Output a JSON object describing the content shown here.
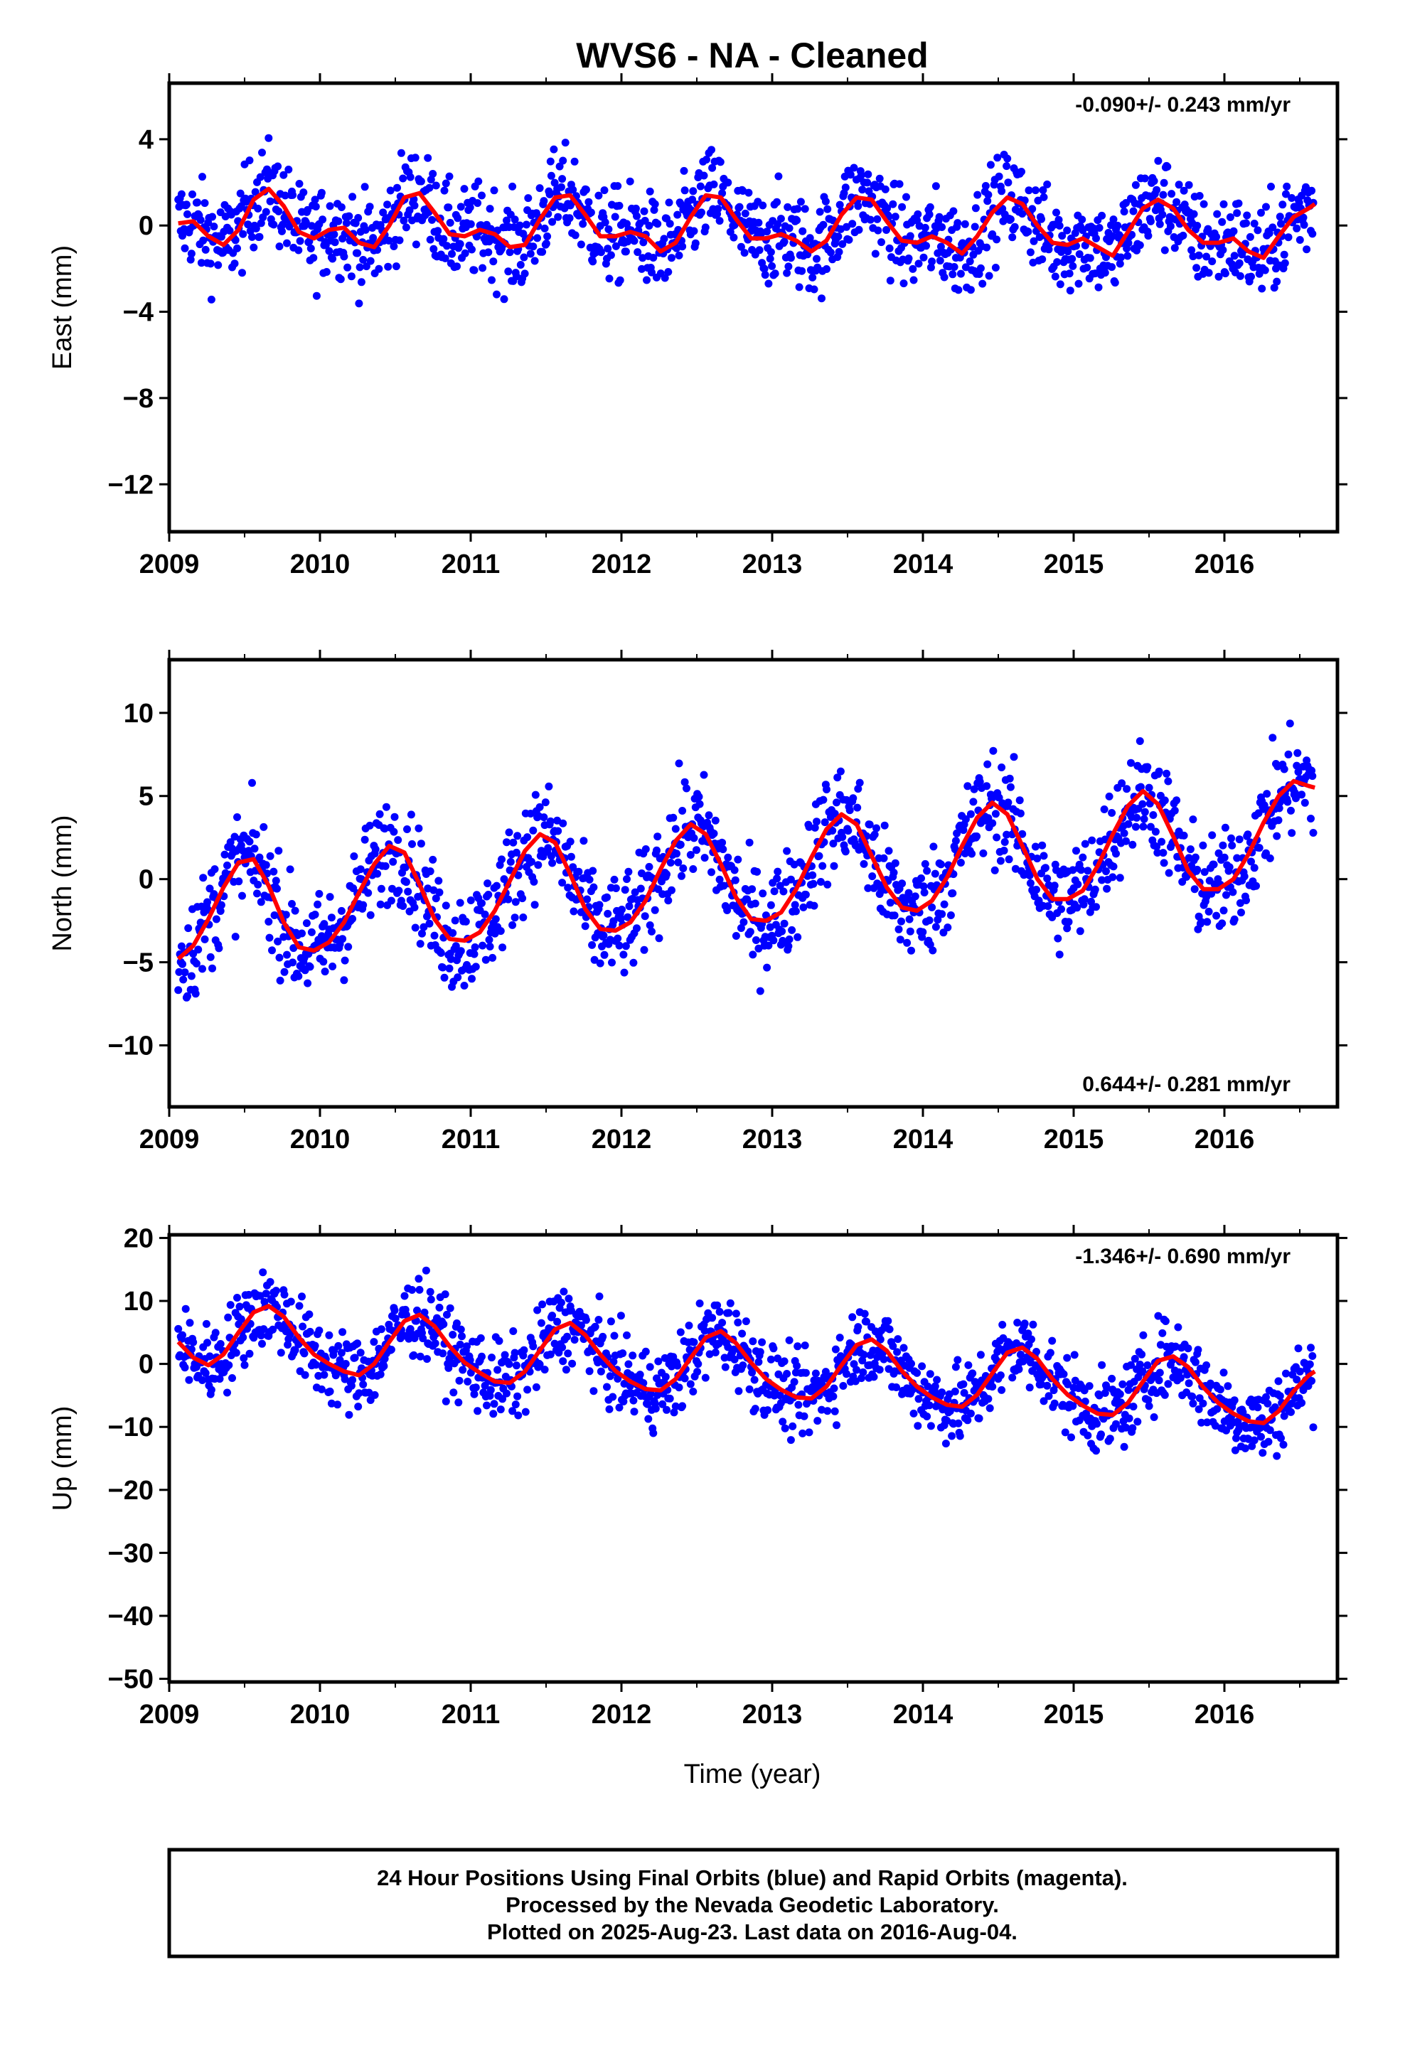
{
  "title": "WVS6  - NA - Cleaned",
  "xlabel": "Time (year)",
  "colors": {
    "final": "#0000ff",
    "rapid": "#ff00ff",
    "model": "#ff0000",
    "frame": "#000000"
  },
  "chart_data": [
    {
      "type": "scatter",
      "ylabel": "East (mm)",
      "rate_text": "-0.090+/- 0.243 mm/yr",
      "rate_position": "top-right",
      "xlim": [
        2009.0,
        2016.75
      ],
      "ylim": [
        -14.2,
        6.6
      ],
      "x_ticks": [
        "2009",
        "2010",
        "2011",
        "2012",
        "2013",
        "2014",
        "2015",
        "2016"
      ],
      "y_ticks": [
        "4",
        "0",
        "−4",
        "−8",
        "−12"
      ],
      "y_tick_values": [
        4,
        0,
        -4,
        -8,
        -12
      ],
      "series": [
        {
          "kind": "model",
          "x": [
            2009.06,
            2009.16,
            2009.26,
            2009.36,
            2009.46,
            2009.56,
            2009.66,
            2009.76,
            2009.86,
            2009.96,
            2010.06,
            2010.16,
            2010.26,
            2010.36,
            2010.46,
            2010.56,
            2010.66,
            2010.76,
            2010.86,
            2010.96,
            2011.06,
            2011.16,
            2011.26,
            2011.36,
            2011.46,
            2011.56,
            2011.66,
            2011.76,
            2011.86,
            2011.96,
            2012.06,
            2012.16,
            2012.26,
            2012.36,
            2012.46,
            2012.56,
            2012.66,
            2012.76,
            2012.86,
            2012.96,
            2013.06,
            2013.16,
            2013.26,
            2013.36,
            2013.46,
            2013.56,
            2013.66,
            2013.76,
            2013.86,
            2013.96,
            2014.06,
            2014.16,
            2014.26,
            2014.36,
            2014.46,
            2014.56,
            2014.66,
            2014.76,
            2014.86,
            2014.96,
            2015.06,
            2015.16,
            2015.26,
            2015.36,
            2015.46,
            2015.56,
            2015.66,
            2015.76,
            2015.86,
            2015.96,
            2016.06,
            2016.16,
            2016.26,
            2016.36,
            2016.46,
            2016.56,
            2016.6
          ],
          "y": [
            0.1,
            0.2,
            -0.5,
            -0.9,
            -0.2,
            1.2,
            1.7,
            0.9,
            -0.3,
            -0.6,
            -0.2,
            -0.1,
            -0.8,
            -1.0,
            0.0,
            1.3,
            1.5,
            0.6,
            -0.4,
            -0.5,
            -0.2,
            -0.4,
            -1.0,
            -0.9,
            0.3,
            1.3,
            1.4,
            0.5,
            -0.5,
            -0.5,
            -0.3,
            -0.5,
            -1.2,
            -0.8,
            0.4,
            1.4,
            1.3,
            0.3,
            -0.6,
            -0.6,
            -0.4,
            -0.7,
            -1.2,
            -0.7,
            0.5,
            1.3,
            1.2,
            0.2,
            -0.7,
            -0.8,
            -0.5,
            -0.8,
            -1.3,
            -0.5,
            0.6,
            1.3,
            1.0,
            0.0,
            -0.8,
            -0.9,
            -0.6,
            -1.0,
            -1.4,
            -0.3,
            0.8,
            1.2,
            0.8,
            -0.2,
            -0.8,
            -0.8,
            -0.6,
            -1.2,
            -1.5,
            -0.5,
            0.4,
            0.8,
            1.0
          ]
        }
      ]
    },
    {
      "type": "scatter",
      "ylabel": "North (mm)",
      "rate_text": "0.644+/- 0.281 mm/yr",
      "rate_position": "bottom-right",
      "xlim": [
        2009.0,
        2016.75
      ],
      "ylim": [
        -13.7,
        13.2
      ],
      "x_ticks": [
        "2009",
        "2010",
        "2011",
        "2012",
        "2013",
        "2014",
        "2015",
        "2016"
      ],
      "y_ticks": [
        "10",
        "5",
        "0",
        "−5",
        "−10"
      ],
      "y_tick_values": [
        10,
        5,
        0,
        -5,
        -10
      ],
      "series": [
        {
          "kind": "model",
          "x": [
            2009.06,
            2009.16,
            2009.26,
            2009.36,
            2009.46,
            2009.56,
            2009.66,
            2009.76,
            2009.86,
            2009.96,
            2010.06,
            2010.16,
            2010.26,
            2010.36,
            2010.46,
            2010.56,
            2010.66,
            2010.76,
            2010.86,
            2010.96,
            2011.06,
            2011.16,
            2011.26,
            2011.36,
            2011.46,
            2011.56,
            2011.66,
            2011.76,
            2011.86,
            2011.96,
            2012.06,
            2012.16,
            2012.26,
            2012.36,
            2012.46,
            2012.56,
            2012.66,
            2012.76,
            2012.86,
            2012.96,
            2013.06,
            2013.16,
            2013.26,
            2013.36,
            2013.46,
            2013.56,
            2013.66,
            2013.76,
            2013.86,
            2013.96,
            2014.06,
            2014.16,
            2014.26,
            2014.36,
            2014.46,
            2014.56,
            2014.66,
            2014.76,
            2014.86,
            2014.96,
            2015.06,
            2015.16,
            2015.26,
            2015.36,
            2015.46,
            2015.56,
            2015.66,
            2015.76,
            2015.86,
            2015.96,
            2016.06,
            2016.16,
            2016.26,
            2016.36,
            2016.46,
            2016.56,
            2016.6
          ],
          "y": [
            -4.8,
            -4.0,
            -2.4,
            -0.5,
            1.0,
            1.2,
            -0.4,
            -2.6,
            -4.1,
            -4.3,
            -3.8,
            -2.6,
            -0.8,
            0.9,
            2.0,
            1.6,
            -0.3,
            -2.4,
            -3.6,
            -3.7,
            -3.2,
            -1.9,
            -0.1,
            1.7,
            2.7,
            2.2,
            0.3,
            -1.8,
            -3.0,
            -3.1,
            -2.6,
            -1.3,
            0.6,
            2.3,
            3.3,
            2.7,
            0.9,
            -1.1,
            -2.4,
            -2.5,
            -2.0,
            -0.6,
            1.3,
            3.0,
            3.9,
            3.3,
            1.4,
            -0.5,
            -1.7,
            -1.9,
            -1.3,
            0.1,
            2.0,
            3.7,
            4.6,
            3.9,
            2.0,
            0.0,
            -1.2,
            -1.2,
            -0.7,
            0.8,
            2.7,
            4.4,
            5.3,
            4.5,
            2.6,
            0.5,
            -0.6,
            -0.6,
            0.0,
            1.5,
            3.4,
            5.0,
            5.9,
            5.6,
            5.5
          ]
        }
      ]
    },
    {
      "type": "scatter",
      "ylabel": "Up (mm)",
      "rate_text": "-1.346+/- 0.690 mm/yr",
      "rate_position": "top-right",
      "xlim": [
        2009.0,
        2016.75
      ],
      "ylim": [
        -50.5,
        20.5
      ],
      "x_ticks": [
        "2009",
        "2010",
        "2011",
        "2012",
        "2013",
        "2014",
        "2015",
        "2016"
      ],
      "y_ticks": [
        "20",
        "10",
        "0",
        "−10",
        "−20",
        "−30",
        "−40",
        "−50"
      ],
      "y_tick_values": [
        20,
        10,
        0,
        -10,
        -20,
        -30,
        -40,
        -50
      ],
      "series": [
        {
          "kind": "model",
          "x": [
            2009.06,
            2009.16,
            2009.26,
            2009.36,
            2009.46,
            2009.56,
            2009.66,
            2009.76,
            2009.86,
            2009.96,
            2010.06,
            2010.16,
            2010.26,
            2010.36,
            2010.46,
            2010.56,
            2010.66,
            2010.76,
            2010.86,
            2010.96,
            2011.06,
            2011.16,
            2011.26,
            2011.36,
            2011.46,
            2011.56,
            2011.66,
            2011.76,
            2011.86,
            2011.96,
            2012.06,
            2012.16,
            2012.26,
            2012.36,
            2012.46,
            2012.56,
            2012.66,
            2012.76,
            2012.86,
            2012.96,
            2013.06,
            2013.16,
            2013.26,
            2013.36,
            2013.46,
            2013.56,
            2013.66,
            2013.76,
            2013.86,
            2013.96,
            2014.06,
            2014.16,
            2014.26,
            2014.36,
            2014.46,
            2014.56,
            2014.66,
            2014.76,
            2014.86,
            2014.96,
            2015.06,
            2015.16,
            2015.26,
            2015.36,
            2015.46,
            2015.56,
            2015.66,
            2015.76,
            2015.86,
            2015.96,
            2016.06,
            2016.16,
            2016.26,
            2016.36,
            2016.46,
            2016.56,
            2016.6
          ],
          "y": [
            3.5,
            1.0,
            -0.2,
            1.5,
            5.0,
            8.2,
            9.2,
            7.5,
            4.2,
            1.5,
            0.0,
            -1.2,
            -1.8,
            0.0,
            3.5,
            6.8,
            7.8,
            6.0,
            2.8,
            0.2,
            -1.4,
            -2.8,
            -3.0,
            -1.2,
            2.2,
            5.5,
            6.5,
            4.6,
            1.5,
            -1.1,
            -2.8,
            -4.0,
            -4.2,
            -2.4,
            1.0,
            4.2,
            5.2,
            3.3,
            0.2,
            -2.4,
            -4.1,
            -5.3,
            -5.5,
            -3.6,
            -0.2,
            3.0,
            3.9,
            2.1,
            -1.1,
            -3.6,
            -5.3,
            -6.5,
            -6.8,
            -4.9,
            -1.5,
            1.8,
            2.6,
            0.8,
            -2.4,
            -4.9,
            -6.6,
            -7.9,
            -8.1,
            -6.2,
            -2.8,
            0.5,
            1.2,
            -0.5,
            -3.7,
            -6.2,
            -7.9,
            -9.1,
            -9.4,
            -7.5,
            -4.3,
            -1.8,
            -1.2
          ]
        }
      ]
    }
  ],
  "footer": {
    "line1": "24 Hour Positions Using Final Orbits (blue) and Rapid Orbits (magenta).",
    "line2": "Processed by the Nevada Geodetic Laboratory.",
    "line3": "Plotted on 2025-Aug-23. Last data on 2016-Aug-04."
  }
}
